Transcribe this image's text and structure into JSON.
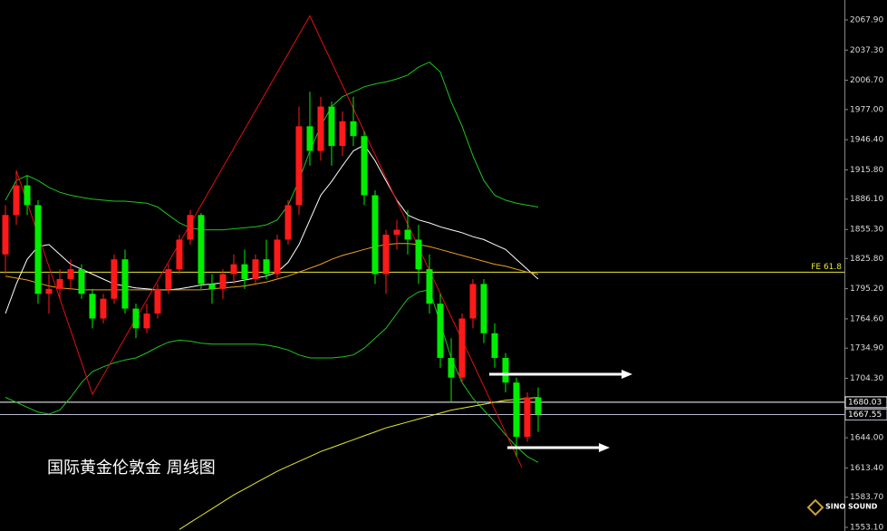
{
  "chart_data": {
    "type": "candlestick",
    "title": "国际黄金伦敦金 周线图",
    "logo": "SINO SOUND",
    "up_color": "#ff1a1a",
    "down_color": "#00ee00",
    "open": [
      1830,
      1870,
      1900,
      1880,
      1790,
      1795,
      1805,
      1815,
      1790,
      1765,
      1785,
      1825,
      1775,
      1755,
      1770,
      1795,
      1815,
      1845,
      1870,
      1800,
      1795,
      1810,
      1820,
      1805,
      1825,
      1810,
      1845,
      1880,
      1960,
      1935,
      1980,
      1940,
      1965,
      1950,
      1890,
      1810,
      1850,
      1855,
      1845,
      1815,
      1780,
      1725,
      1705,
      1765,
      1800,
      1750,
      1725,
      1700,
      1645,
      1685
    ],
    "high": [
      1880,
      1915,
      1910,
      1885,
      1810,
      1815,
      1825,
      1820,
      1795,
      1790,
      1830,
      1835,
      1780,
      1780,
      1800,
      1820,
      1850,
      1875,
      1872,
      1810,
      1815,
      1830,
      1835,
      1830,
      1845,
      1850,
      1885,
      1980,
      1995,
      1990,
      1985,
      1975,
      1990,
      1955,
      1895,
      1855,
      1865,
      1875,
      1860,
      1830,
      1790,
      1745,
      1770,
      1805,
      1805,
      1760,
      1730,
      1705,
      1690,
      1695
    ],
    "low": [
      1810,
      1860,
      1870,
      1780,
      1770,
      1785,
      1795,
      1785,
      1755,
      1760,
      1780,
      1770,
      1745,
      1750,
      1765,
      1790,
      1810,
      1840,
      1795,
      1780,
      1785,
      1800,
      1795,
      1800,
      1805,
      1805,
      1840,
      1870,
      1920,
      1925,
      1920,
      1930,
      1940,
      1880,
      1800,
      1790,
      1835,
      1830,
      1800,
      1770,
      1715,
      1680,
      1700,
      1755,
      1740,
      1715,
      1690,
      1625,
      1640,
      1650
    ],
    "close": [
      1870,
      1900,
      1880,
      1790,
      1795,
      1805,
      1815,
      1790,
      1765,
      1785,
      1825,
      1775,
      1755,
      1770,
      1795,
      1815,
      1845,
      1870,
      1800,
      1795,
      1810,
      1820,
      1805,
      1825,
      1810,
      1845,
      1880,
      1960,
      1935,
      1980,
      1940,
      1965,
      1950,
      1890,
      1810,
      1850,
      1855,
      1845,
      1815,
      1780,
      1725,
      1705,
      1765,
      1800,
      1750,
      1725,
      1700,
      1645,
      1685,
      1667.55
    ],
    "lines": [
      {
        "color": "#1fc41f",
        "values": [
          1885,
          1905,
          1910,
          1905,
          1898,
          1893,
          1890,
          1888,
          1886,
          1885,
          1884,
          1884,
          1883,
          1882,
          1878,
          1870,
          1862,
          1857,
          1855,
          1855,
          1855,
          1856,
          1857,
          1858,
          1860,
          1865,
          1880,
          1905,
          1935,
          1960,
          1980,
          1990,
          1995,
          2000,
          2003,
          2005,
          2008,
          2012,
          2020,
          2025,
          2015,
          1985,
          1960,
          1930,
          1905,
          1890,
          1885,
          1882,
          1880,
          1878
        ]
      },
      {
        "color": "#1fc41f",
        "values": [
          1685,
          1680,
          1675,
          1670,
          1668,
          1672,
          1685,
          1700,
          1711,
          1716,
          1720,
          1723,
          1725,
          1730,
          1736,
          1741,
          1743,
          1742,
          1740,
          1739,
          1739,
          1739,
          1739,
          1739,
          1738,
          1736,
          1733,
          1728,
          1725,
          1725,
          1725,
          1726,
          1728,
          1735,
          1745,
          1755,
          1770,
          1785,
          1792,
          1794,
          1760,
          1725,
          1700,
          1684,
          1672,
          1660,
          1647,
          1635,
          1625,
          1619
        ]
      },
      {
        "color": "#ffffff",
        "values": [
          1770,
          1800,
          1825,
          1838,
          1840,
          1830,
          1820,
          1815,
          1810,
          1805,
          1800,
          1798,
          1796,
          1795,
          1794,
          1794,
          1795,
          1797,
          1799,
          1800,
          1801,
          1802,
          1804,
          1806,
          1808,
          1812,
          1822,
          1840,
          1865,
          1890,
          1904,
          1920,
          1935,
          1941,
          1925,
          1905,
          1885,
          1870,
          1865,
          1862,
          1858,
          1855,
          1852,
          1848,
          1845,
          1840,
          1835,
          1825,
          1815,
          1805
        ]
      },
      {
        "color": "#e8a020",
        "values": [
          1808,
          1806,
          1804,
          1801,
          1798,
          1796,
          1795,
          1794,
          1794,
          1794,
          1794,
          1794,
          1794,
          1794,
          1794,
          1794,
          1794,
          1794,
          1794,
          1795,
          1796,
          1797,
          1798,
          1800,
          1802,
          1805,
          1808,
          1812,
          1816,
          1820,
          1825,
          1829,
          1832,
          1835,
          1838,
          1840,
          1841,
          1841,
          1840,
          1838,
          1835,
          1832,
          1829,
          1826,
          1823,
          1820,
          1818,
          1815,
          1812,
          1810
        ]
      },
      {
        "color": "#e8e830",
        "values": [
          null,
          null,
          null,
          null,
          null,
          null,
          null,
          null,
          null,
          null,
          null,
          null,
          null,
          null,
          null,
          null,
          1551,
          1558,
          1565,
          1572,
          1579,
          1586,
          1592,
          1598,
          1604,
          1610,
          1615,
          1620,
          1625,
          1630,
          1634,
          1638,
          1642,
          1646,
          1650,
          1654,
          1657,
          1660,
          1663,
          1666,
          1669,
          1672,
          1674,
          1676,
          1678,
          1680,
          1682,
          1683,
          1684,
          1685
        ]
      }
    ],
    "zigzag": {
      "color": "#e01010",
      "x": [
        1,
        8,
        28,
        47.5
      ],
      "values": [
        1915,
        1688,
        2072,
        1614
      ]
    },
    "fe_level": {
      "label": "FE 61.8",
      "value": 1812,
      "color": "#e8e830"
    },
    "levels": [
      {
        "value": 1680.03,
        "color": "#ffffff"
      },
      {
        "value": 1667.55,
        "color": "#b8b8d0"
      }
    ],
    "ylim": [
      1549.4,
      2088.1
    ],
    "yticks": [
      {
        "value": 2067.9,
        "label": "2067.90"
      },
      {
        "value": 2037.3,
        "label": "2037.30"
      },
      {
        "value": 2006.7,
        "label": "2006.70"
      },
      {
        "value": 1977,
        "label": "1977.00"
      },
      {
        "value": 1946.4,
        "label": "1946.40"
      },
      {
        "value": 1915.8,
        "label": "1915.80"
      },
      {
        "value": 1886.1,
        "label": "1886.10"
      },
      {
        "value": 1855.3,
        "label": "1855.30"
      },
      {
        "value": 1825.8,
        "label": "1825.80"
      },
      {
        "value": 1795.2,
        "label": "1795.20"
      },
      {
        "value": 1764.6,
        "label": "1764.60"
      },
      {
        "value": 1734.9,
        "label": "1734.90"
      },
      {
        "value": 1704.3,
        "label": "1704.30"
      },
      {
        "value": 1644,
        "label": "1644.00"
      },
      {
        "value": 1613.4,
        "label": "1613.40"
      },
      {
        "value": 1583.7,
        "label": "1583.70"
      },
      {
        "value": 1553.1,
        "label": "1553.10"
      }
    ]
  }
}
